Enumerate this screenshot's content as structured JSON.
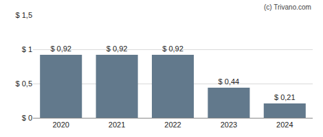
{
  "chart_data": {
    "type": "bar",
    "categories": [
      "2020",
      "2021",
      "2022",
      "2023",
      "2024"
    ],
    "values": [
      0.92,
      0.92,
      0.92,
      0.44,
      0.21
    ],
    "value_labels": [
      "$ 0,92",
      "$ 0,92",
      "$ 0,92",
      "$ 0,44",
      "$ 0,21"
    ],
    "data_labels": true,
    "color": "#62798c",
    "ylim": [
      0,
      1.5
    ],
    "yticks": [
      {
        "value": 0,
        "label": "$ 0"
      },
      {
        "value": 0.5,
        "label": "$ 0,5"
      },
      {
        "value": 1,
        "label": "$ 1"
      },
      {
        "value": 1.5,
        "label": "$ 1,5"
      }
    ],
    "grid": true,
    "annotations": [
      "(c) Trivano.com"
    ]
  }
}
